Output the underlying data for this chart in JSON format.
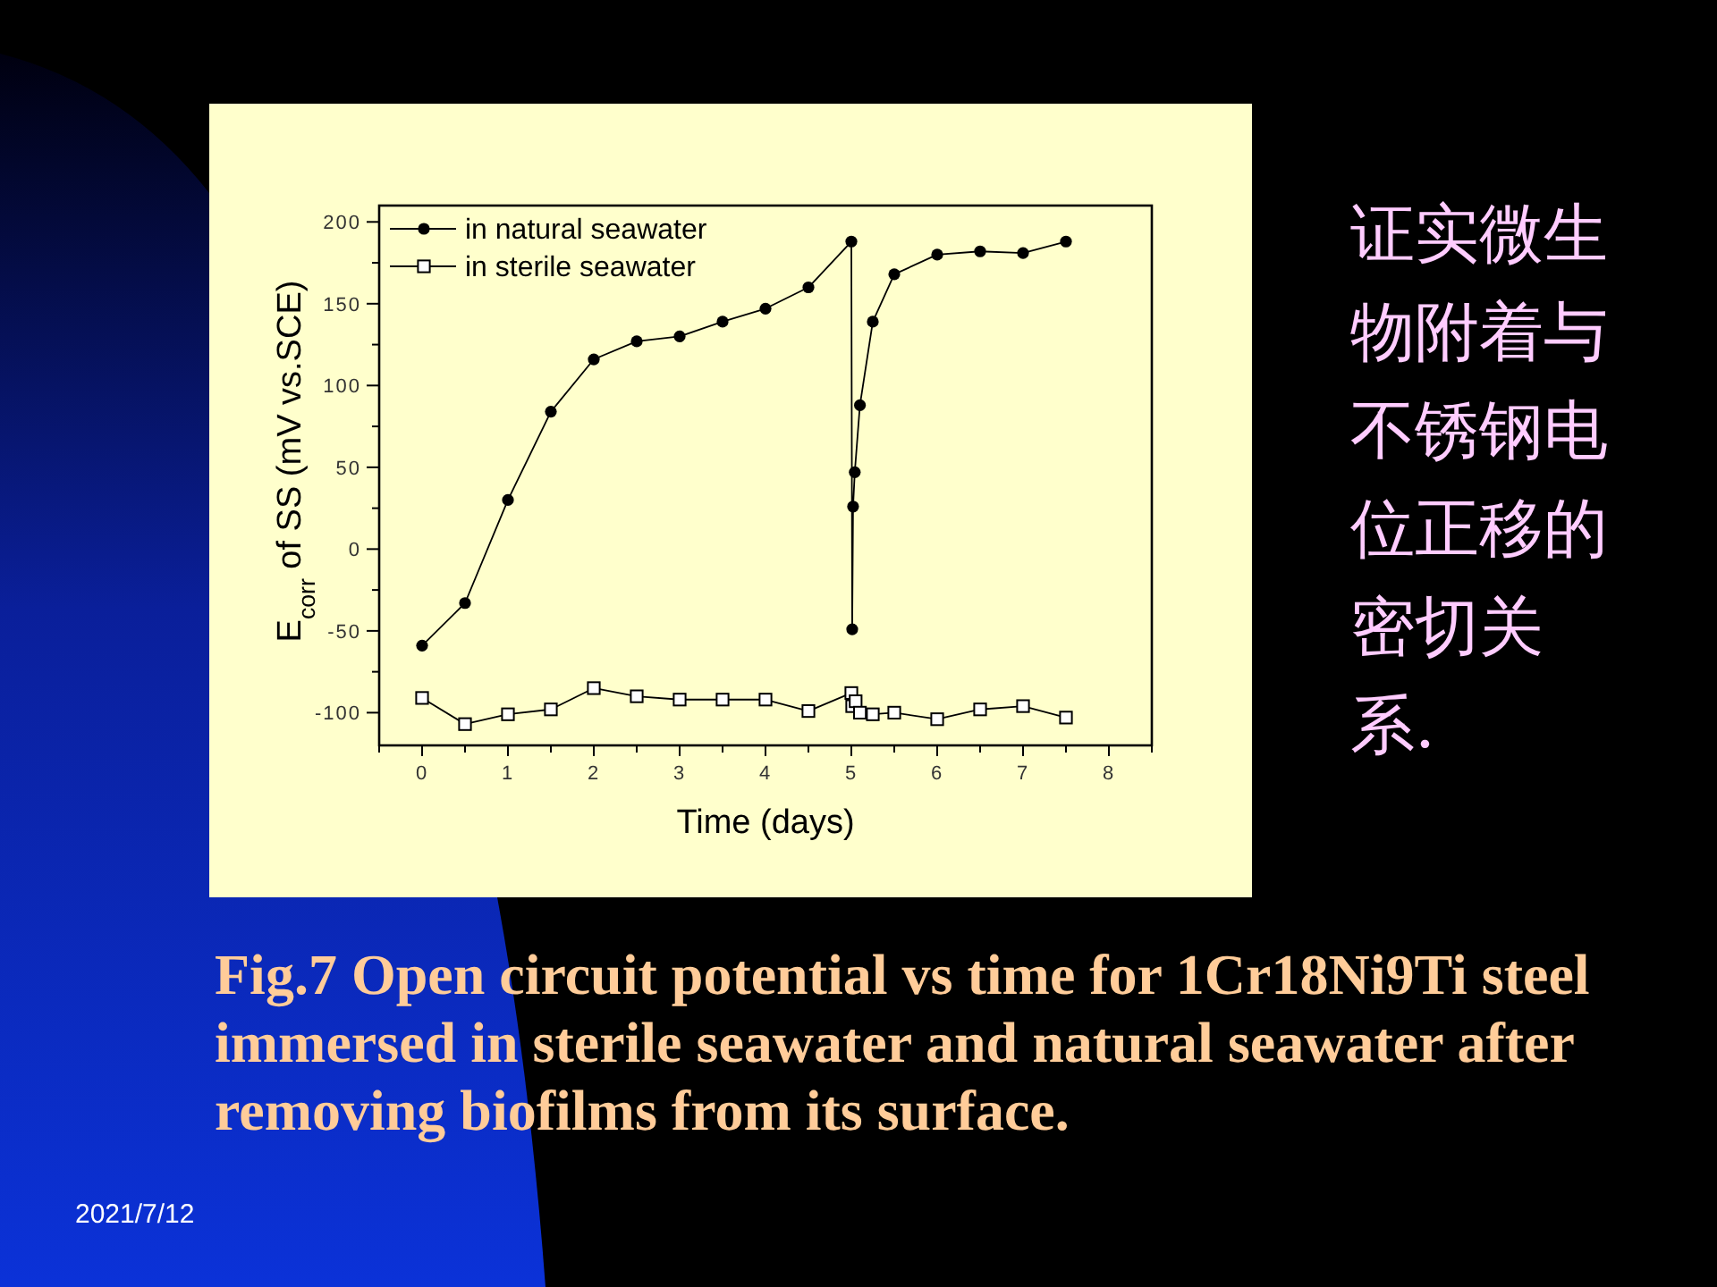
{
  "chart_data": {
    "type": "line",
    "xlabel": "Time (days)",
    "ylabel": "E$_{corr}$ of SS (mV vs.SCE)",
    "xlim": [
      -0.5,
      8.5
    ],
    "ylim": [
      -120,
      210
    ],
    "xticks": [
      {
        "value": -0.5,
        "label": null
      },
      0,
      {
        "value": 0.5,
        "label": null
      },
      1,
      {
        "value": 1.5,
        "label": null
      },
      2,
      {
        "value": 2.5,
        "label": null
      },
      3,
      {
        "value": 3.5,
        "label": null
      },
      4,
      {
        "value": 4.5,
        "label": null
      },
      5,
      {
        "value": 5.5,
        "label": null
      },
      6,
      {
        "value": 6.5,
        "label": null
      },
      7,
      {
        "value": 7.5,
        "label": null
      },
      8,
      {
        "value": 8.5,
        "label": null
      }
    ],
    "yticks": [
      -100,
      {
        "value": -75,
        "label": null
      },
      -50,
      {
        "value": -25,
        "label": null
      },
      0,
      {
        "value": 25,
        "label": null
      },
      50,
      {
        "value": 75,
        "label": null
      },
      100,
      {
        "value": 125,
        "label": null
      },
      150,
      {
        "value": 175,
        "label": null
      },
      200
    ],
    "legend": "top left",
    "line_style": "solid",
    "series": [
      {
        "name": "in natural seawater",
        "color": "#000000",
        "marker": "circle",
        "x": [
          0,
          0.5,
          1,
          1.5,
          2,
          2.5,
          3,
          3.5,
          4,
          4.5,
          5,
          5.01,
          5.02,
          5.04,
          5.1,
          5.25,
          5.5,
          6,
          6.5,
          7,
          7.5
        ],
        "values": [
          -59,
          -33,
          30,
          84,
          116,
          127,
          130,
          139,
          147,
          160,
          188,
          -49,
          26,
          47,
          88,
          139,
          168,
          180,
          182,
          181,
          188
        ]
      },
      {
        "name": "in sterile seawater",
        "color": "#000000",
        "marker": "square",
        "x": [
          0,
          0.5,
          1,
          1.5,
          2,
          2.5,
          3,
          3.5,
          4,
          4.5,
          5,
          5.01,
          5.05,
          5.1,
          5.25,
          5.5,
          6,
          6.5,
          7,
          7.5
        ],
        "values": [
          -91,
          -107,
          -101,
          -98,
          -85,
          -90,
          -92,
          -92,
          -92,
          -99,
          -88,
          -96,
          -93,
          -100,
          -101,
          -100,
          -104,
          -98,
          -96,
          -103
        ]
      }
    ],
    "annotations": [
      "证实微生物附着与不锈钢电位正移的密切关系.",
      "Fig.7 Open circuit potential vs time for 1Cr18Ni9Ti steel immersed in sterile seawater and natural seawater after removing biofilms from its surface.",
      "2021/7/12"
    ]
  }
}
